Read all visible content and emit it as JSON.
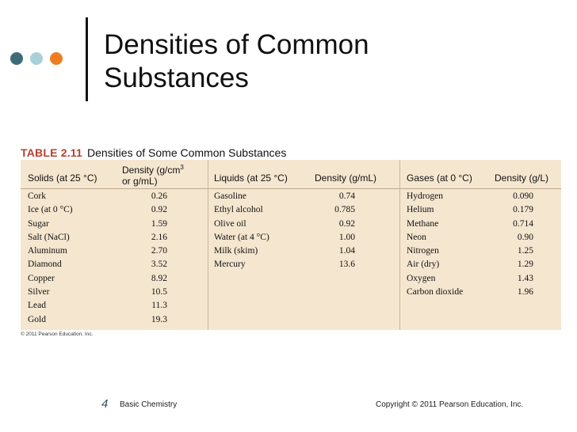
{
  "slide": {
    "title_line1": "Densities of Common",
    "title_line2": "Substances",
    "accent_colors": [
      "#3f6b78",
      "#a8d0d8",
      "#ee7d22"
    ]
  },
  "table": {
    "number": "TABLE 2.11",
    "caption": "Densities of Some Common Substances",
    "headers": {
      "solids": "Solids (at 25 °C)",
      "solids_density_1": "Density (g/cm",
      "solids_density_sup": "3",
      "solids_density_2": "or g/mL)",
      "liquids": "Liquids (at 25 °C)",
      "liquids_density": "Density (g/mL)",
      "gases": "Gases (at 0 °C)",
      "gases_density": "Density (g/L)"
    },
    "solids": [
      {
        "name": "Cork",
        "value": "0.26"
      },
      {
        "name": "Ice (at 0 °C)",
        "value": "0.92"
      },
      {
        "name": "Sugar",
        "value": "1.59"
      },
      {
        "name": "Salt (NaCl)",
        "value": "2.16"
      },
      {
        "name": "Aluminum",
        "value": "2.70"
      },
      {
        "name": "Diamond",
        "value": "3.52"
      },
      {
        "name": "Copper",
        "value": "8.92"
      },
      {
        "name": "Silver",
        "value": "10.5"
      },
      {
        "name": "Lead",
        "value": "11.3"
      },
      {
        "name": "Gold",
        "value": "19.3"
      }
    ],
    "liquids": [
      {
        "name": "Gasoline",
        "value": "0.74"
      },
      {
        "name": "Ethyl alcohol",
        "value": "0.785"
      },
      {
        "name": "Olive oil",
        "value": "0.92"
      },
      {
        "name": "Water (at 4 °C)",
        "value": "1.00"
      },
      {
        "name": "Milk (skim)",
        "value": "1.04"
      },
      {
        "name": "Mercury",
        "value": "13.6"
      }
    ],
    "gases": [
      {
        "name": "Hydrogen",
        "value": "0.090"
      },
      {
        "name": "Helium",
        "value": "0.179"
      },
      {
        "name": "Methane",
        "value": "0.714"
      },
      {
        "name": "Neon",
        "value": "0.90"
      },
      {
        "name": "Nitrogen",
        "value": "1.25"
      },
      {
        "name": "Air (dry)",
        "value": "1.29"
      },
      {
        "name": "Oxygen",
        "value": "1.43"
      },
      {
        "name": "Carbon dioxide",
        "value": "1.96"
      }
    ],
    "credit": "© 2011 Pearson Education, Inc."
  },
  "footer": {
    "page": "4",
    "course": "Basic Chemistry",
    "copyright": "Copyright © 2011 Pearson Education, Inc."
  }
}
